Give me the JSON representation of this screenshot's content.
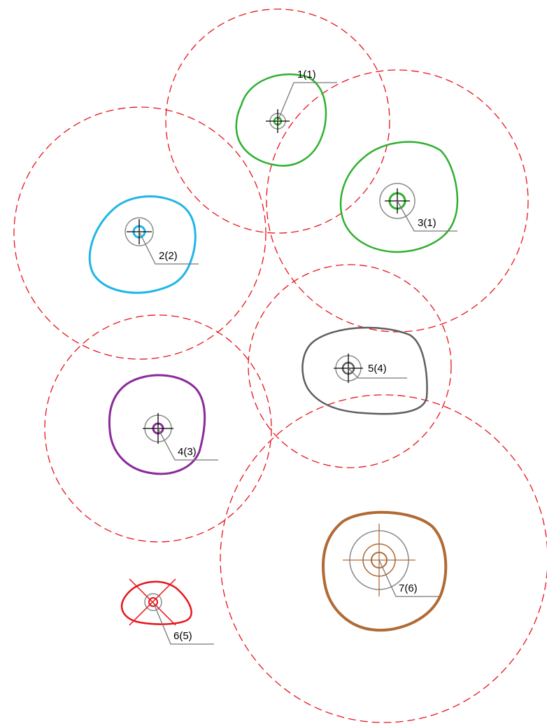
{
  "colors": {
    "buffer_circle": "#e8141c",
    "leader": "#777777",
    "crosshair": "#000000",
    "marker_ring": "#8a8a8a",
    "background": "#ffffff"
  },
  "sites": [
    {
      "id": "site-1",
      "label": "1(1)",
      "color": "#2fb02f"
    },
    {
      "id": "site-2",
      "label": "2(2)",
      "color": "#1fb6e8"
    },
    {
      "id": "site-3",
      "label": "3(1)",
      "color": "#2fb02f"
    },
    {
      "id": "site-4",
      "label": "4(3)",
      "color": "#8a2a9a"
    },
    {
      "id": "site-5",
      "label": "5(4)",
      "color": "#5e5e5e"
    },
    {
      "id": "site-6",
      "label": "6(5)",
      "color": "#e8141c"
    },
    {
      "id": "site-7",
      "label": "7(6)",
      "color": "#b06a35"
    }
  ]
}
